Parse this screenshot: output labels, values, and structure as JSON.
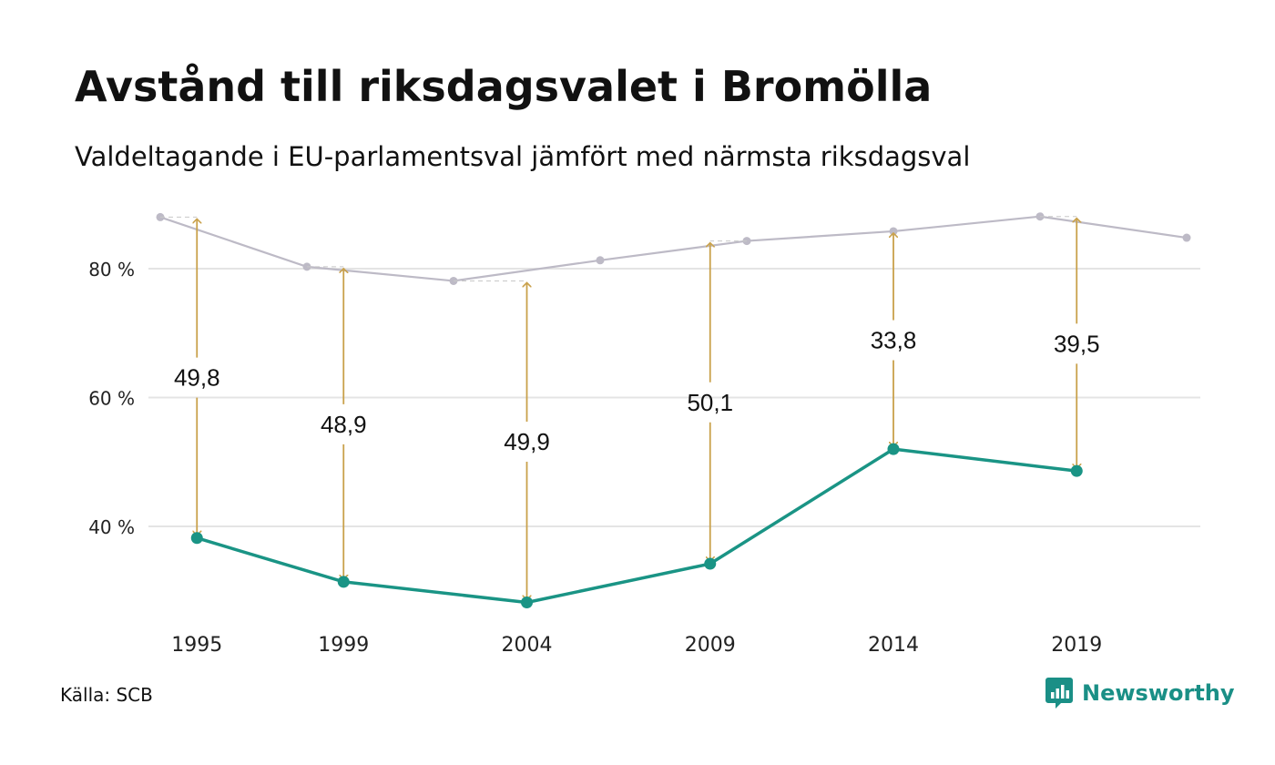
{
  "title": "Avstånd till riksdagsvalet i Bromölla",
  "subtitle": "Valdeltagande i EU-parlamentsval jämfört med närmsta riksdagsval",
  "source": "Källa: SCB",
  "brand": {
    "name": "Newsworthy",
    "icon": "newsworthy-logo-icon",
    "color": "#1a8f86"
  },
  "colors": {
    "eu_line": "#1a9485",
    "riksdag_line": "#bdbac6",
    "arrow": "#c9a14b",
    "grid": "#e4e4e4"
  },
  "chart_data": {
    "type": "line",
    "title": "",
    "xlabel": "",
    "ylabel": "",
    "ylim": [
      22,
      92
    ],
    "yticks": [
      40,
      60,
      80
    ],
    "y_tick_labels": [
      "40 %",
      "60 %",
      "80 %"
    ],
    "x_tick_labels": [
      "1995",
      "1999",
      "2004",
      "2009",
      "2014",
      "2019"
    ],
    "grid": "horizontal",
    "legend": "none",
    "series": [
      {
        "key": "riksdag",
        "x": [
          1994,
          1998,
          2002,
          2006,
          2010,
          2014,
          2018,
          2022
        ],
        "values": [
          88.0,
          80.3,
          78.1,
          81.3,
          84.3,
          85.8,
          88.1,
          84.8
        ]
      },
      {
        "key": "eu",
        "x": [
          1995,
          1999,
          2004,
          2009,
          2014,
          2019
        ],
        "values": [
          38.2,
          31.4,
          28.2,
          34.2,
          52.0,
          48.6
        ]
      }
    ],
    "differences": [
      {
        "x": 1995,
        "reference": 88.0,
        "eu": 38.2,
        "label": "49,8"
      },
      {
        "x": 1999,
        "reference": 80.3,
        "eu": 31.4,
        "label": "48,9"
      },
      {
        "x": 2004,
        "reference": 78.1,
        "eu": 28.2,
        "label": "49,9"
      },
      {
        "x": 2009,
        "reference": 84.3,
        "eu": 34.2,
        "label": "50,1"
      },
      {
        "x": 2014,
        "reference": 85.8,
        "eu": 52.0,
        "label": "33,8"
      },
      {
        "x": 2019,
        "reference": 88.1,
        "eu": 48.6,
        "label": "39,5"
      }
    ]
  }
}
